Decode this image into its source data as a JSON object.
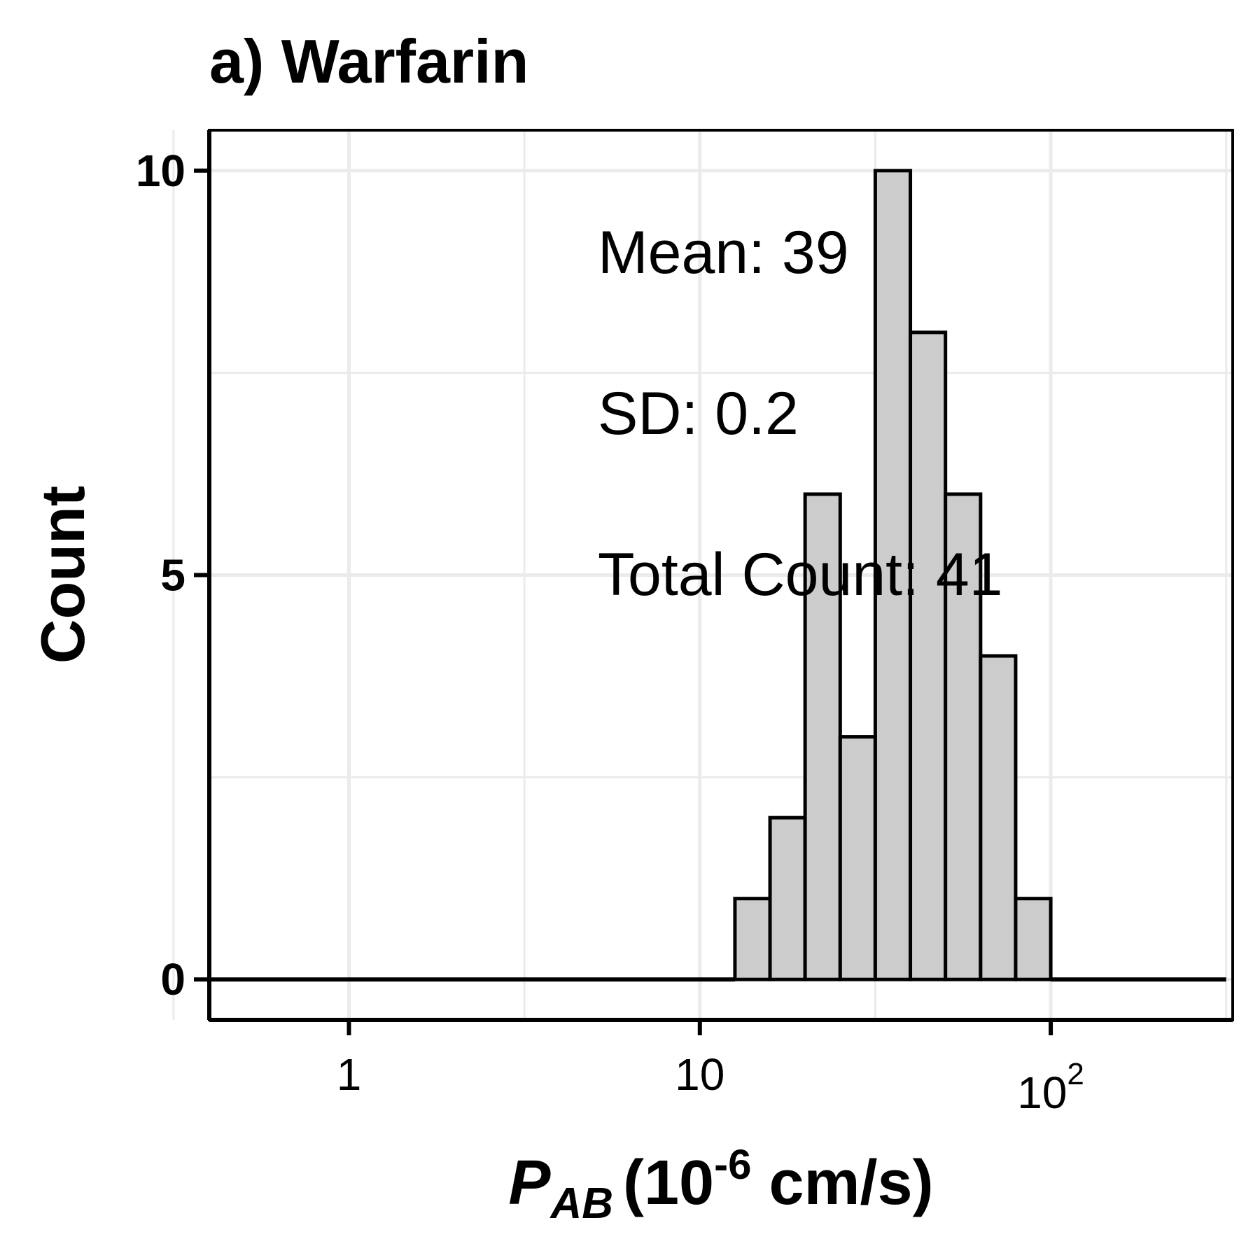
{
  "chart_data": {
    "type": "bar",
    "title": "a) Warfarin",
    "xlabel": {
      "symbol": "P",
      "subscript": "AB",
      "open": "(10",
      "superscript": "-6",
      "unit": " cm/s)"
    },
    "ylabel": "Count",
    "x_scale": "log10",
    "xlim": [
      0.4,
      330
    ],
    "ylim": [
      -0.5,
      10.5
    ],
    "x_ticks": [
      {
        "value": 1,
        "base": "1",
        "exp": ""
      },
      {
        "value": 10,
        "base": "10",
        "exp": ""
      },
      {
        "value": 100,
        "base": "10",
        "exp": "2"
      }
    ],
    "y_ticks": [
      0,
      5,
      10
    ],
    "grid": true,
    "bin_width_log10": 0.1,
    "bins": [
      {
        "x0": 0.398,
        "x1": 12.59,
        "count": 0
      },
      {
        "x0": 12.59,
        "x1": 15.85,
        "count": 1
      },
      {
        "x0": 15.85,
        "x1": 19.95,
        "count": 2
      },
      {
        "x0": 19.95,
        "x1": 25.12,
        "count": 6
      },
      {
        "x0": 25.12,
        "x1": 31.62,
        "count": 3
      },
      {
        "x0": 31.62,
        "x1": 39.81,
        "count": 10
      },
      {
        "x0": 39.81,
        "x1": 50.12,
        "count": 8
      },
      {
        "x0": 50.12,
        "x1": 63.1,
        "count": 6
      },
      {
        "x0": 63.1,
        "x1": 79.43,
        "count": 4
      },
      {
        "x0": 79.43,
        "x1": 100.0,
        "count": 1
      },
      {
        "x0": 100.0,
        "x1": 316.2,
        "count": 0
      }
    ],
    "annotations": [
      "Mean: 39",
      "SD: 0.2",
      "Total Count: 41"
    ],
    "colors": {
      "bar_fill": "#cccccc",
      "bar_stroke": "#000000",
      "grid": "#ebebeb"
    }
  }
}
